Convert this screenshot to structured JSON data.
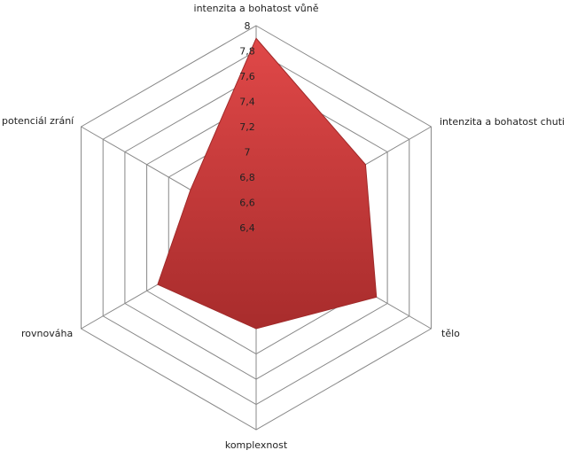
{
  "chart_data": {
    "type": "radar",
    "categories": [
      "intenzita a bohatost vůně",
      "intenzita a bohatost chuti",
      "tělo",
      "komplexnost",
      "rovnováha",
      "potenciál zrání"
    ],
    "values": [
      7.9,
      7.4,
      7.5,
      7.2,
      7.3,
      7.0
    ],
    "color": "#c83a3a",
    "rlim": [
      6.4,
      8
    ],
    "rticks": [
      {
        "value": 6.4,
        "label": "6,4"
      },
      {
        "value": 6.6,
        "label": "6,6"
      },
      {
        "value": 6.8,
        "label": "6,8"
      },
      7,
      {
        "value": 7.2,
        "label": "7,2"
      },
      {
        "value": 7.4,
        "label": "7,4"
      },
      {
        "value": 7.6,
        "label": "7,6"
      },
      {
        "value": 7.8,
        "label": "7,8"
      },
      8
    ],
    "grid": true
  }
}
